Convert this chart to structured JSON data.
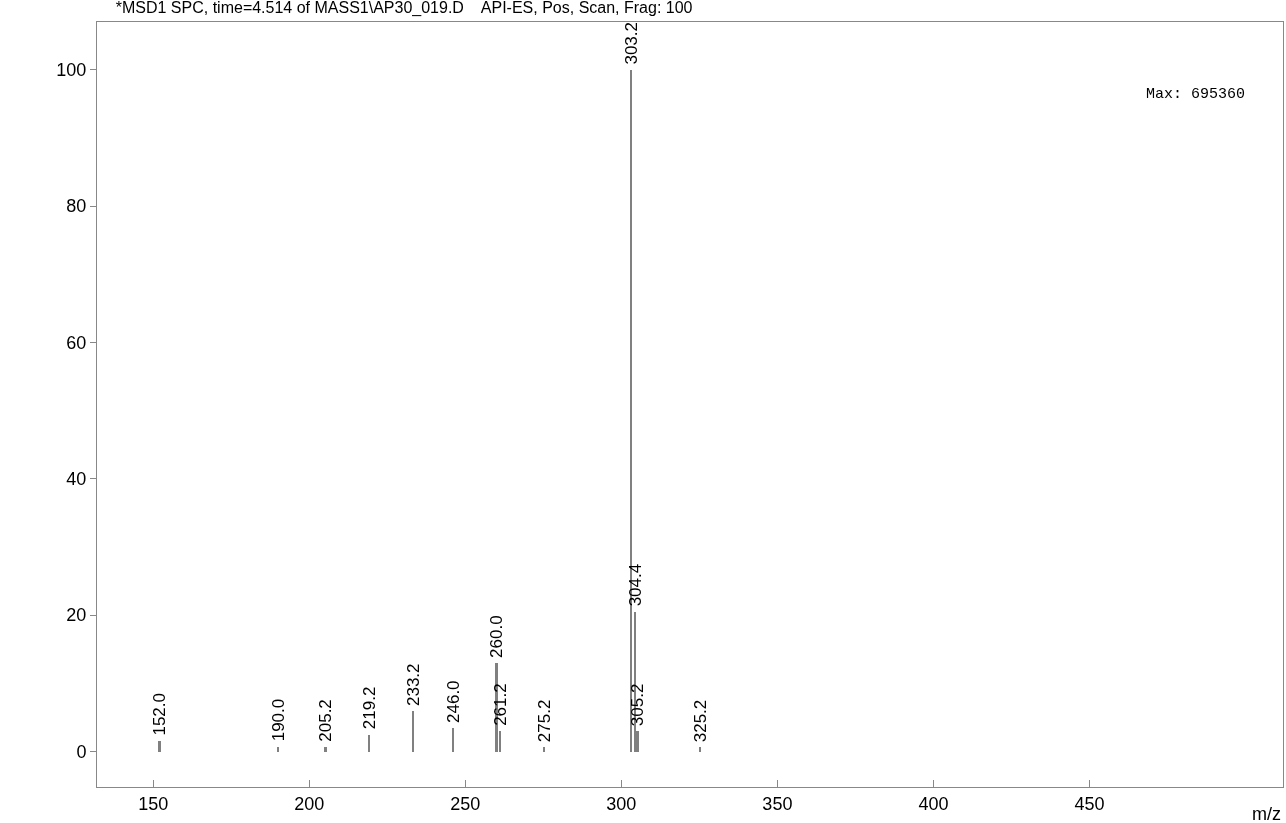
{
  "chart_data": {
    "type": "bar",
    "title": "*MSD1 SPC, time=4.514 of MASS1\\AP30_019.D    API-ES, Pos, Scan, Frag: 100",
    "xlabel": "m/z",
    "annotations": [
      "Max: 695360",
      {
        "text": "152.0",
        "x": 152.0,
        "y": 1.6
      },
      {
        "text": "190.0",
        "x": 190.0,
        "y": 0.7
      },
      {
        "text": "205.2",
        "x": 205.2,
        "y": 0.7
      },
      {
        "text": "219.2",
        "x": 219.2,
        "y": 2.5
      },
      {
        "text": "233.2",
        "x": 233.2,
        "y": 6
      },
      {
        "text": "246.0",
        "x": 246.0,
        "y": 3.5
      },
      {
        "text": "260.0",
        "x": 260.0,
        "y": 13
      },
      {
        "text": "261.2",
        "x": 261.2,
        "y": 3
      },
      {
        "text": "275.2",
        "x": 275.2,
        "y": 0.7
      },
      {
        "text": "303.2",
        "x": 303.2,
        "y": 100
      },
      {
        "text": "304.4",
        "x": 304.4,
        "y": 20.5
      },
      {
        "text": "305.2",
        "x": 305.2,
        "y": 3
      },
      {
        "text": "325.2",
        "x": 325.2,
        "y": 0.7
      }
    ],
    "x": [
      152.0,
      190.0,
      205.2,
      219.2,
      233.2,
      246.0,
      260.0,
      261.2,
      275.2,
      303.2,
      304.4,
      305.2,
      325.2
    ],
    "values": [
      1.6,
      0.7,
      0.7,
      2.5,
      6,
      3.5,
      13,
      3,
      0.7,
      100,
      20.5,
      3,
      0.7
    ],
    "color": "#808080",
    "xlim": [
      132,
      512
    ],
    "xticks": [
      150,
      200,
      250,
      300,
      350,
      400,
      450
    ],
    "ylim": [
      -5.2,
      107
    ],
    "yticks": [
      0,
      20,
      40,
      60,
      80,
      100
    ],
    "grid": false
  }
}
